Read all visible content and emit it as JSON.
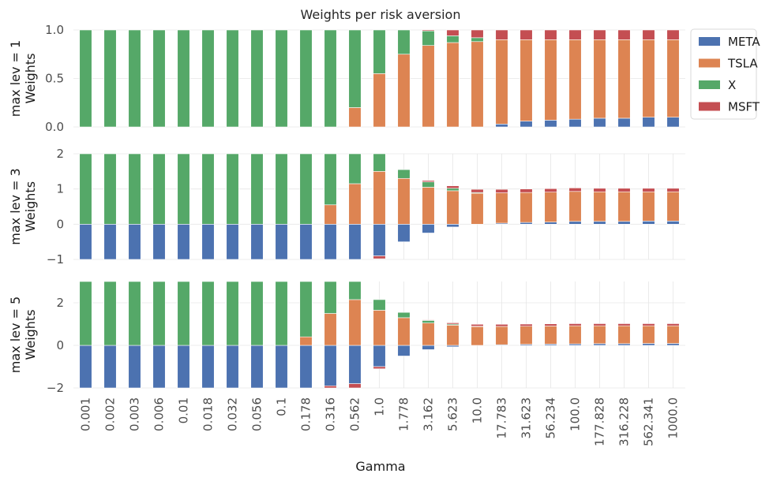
{
  "chart_data": {
    "type": "bar",
    "stacked": true,
    "title": "Weights per risk aversion",
    "xlabel": "Gamma",
    "categories": [
      "0.001",
      "0.002",
      "0.003",
      "0.006",
      "0.01",
      "0.018",
      "0.032",
      "0.056",
      "0.1",
      "0.178",
      "0.316",
      "0.562",
      "1.0",
      "1.778",
      "3.162",
      "5.623",
      "10.0",
      "17.783",
      "31.623",
      "56.234",
      "100.0",
      "177.828",
      "316.228",
      "562.341",
      "1000.0"
    ],
    "legend": {
      "position": "upper right outside",
      "entries": [
        {
          "name": "META",
          "color": "#4c72b0"
        },
        {
          "name": "TSLA",
          "color": "#dd8452"
        },
        {
          "name": "X",
          "color": "#55a868"
        },
        {
          "name": "MSFT",
          "color": "#c44e52"
        }
      ]
    },
    "grid": true,
    "panels": [
      {
        "ylabel": [
          "max lev = 1",
          "Weights"
        ],
        "ylim": [
          0,
          1.0
        ],
        "yticks": [
          "0.0",
          "0.5",
          "1.0"
        ],
        "ytick_values": [
          0,
          0.5,
          1.0
        ],
        "series": [
          {
            "name": "META",
            "values": [
              0,
              0,
              0,
              0,
              0,
              0,
              0,
              0,
              0,
              0,
              0,
              0,
              0,
              0,
              0,
              0,
              0,
              0.03,
              0.06,
              0.07,
              0.08,
              0.09,
              0.09,
              0.1,
              0.1
            ]
          },
          {
            "name": "TSLA",
            "values": [
              0,
              0,
              0,
              0,
              0,
              0,
              0,
              0,
              0,
              0,
              0,
              0.2,
              0.55,
              0.75,
              0.84,
              0.87,
              0.88,
              0.87,
              0.84,
              0.83,
              0.82,
              0.81,
              0.81,
              0.8,
              0.8
            ]
          },
          {
            "name": "X",
            "values": [
              1,
              1,
              1,
              1,
              1,
              1,
              1,
              1,
              1,
              1,
              1,
              0.8,
              0.45,
              0.25,
              0.15,
              0.07,
              0.04,
              0,
              0,
              0,
              0,
              0,
              0,
              0,
              0
            ]
          },
          {
            "name": "MSFT",
            "values": [
              0,
              0,
              0,
              0,
              0,
              0,
              0,
              0,
              0,
              0,
              0,
              0,
              0,
              0,
              0.01,
              0.06,
              0.08,
              0.1,
              0.1,
              0.1,
              0.1,
              0.1,
              0.1,
              0.1,
              0.1
            ]
          }
        ]
      },
      {
        "ylabel": [
          "max lev = 3",
          "Weights"
        ],
        "ylim": [
          -1,
          2
        ],
        "yticks": [
          "−1",
          "0",
          "1",
          "2"
        ],
        "ytick_values": [
          -1,
          0,
          1,
          2
        ],
        "series": [
          {
            "name": "META",
            "values": [
              -1,
              -1,
              -1,
              -1,
              -1,
              -1,
              -1,
              -1,
              -1,
              -1,
              -1,
              -1,
              -0.9,
              -0.5,
              -0.25,
              -0.08,
              0,
              0.03,
              0.05,
              0.06,
              0.08,
              0.08,
              0.08,
              0.09,
              0.09
            ]
          },
          {
            "name": "TSLA",
            "values": [
              0,
              0,
              0,
              0,
              0,
              0,
              0,
              0,
              0,
              0,
              0.55,
              1.15,
              1.5,
              1.3,
              1.05,
              0.95,
              0.88,
              0.86,
              0.85,
              0.85,
              0.85,
              0.84,
              0.84,
              0.83,
              0.83
            ]
          },
          {
            "name": "X",
            "values": [
              2,
              2,
              2,
              2,
              2,
              2,
              2,
              2,
              2,
              2,
              1.45,
              0.85,
              0.5,
              0.25,
              0.15,
              0.07,
              0.02,
              0,
              0,
              0,
              0,
              0,
              0,
              0,
              0
            ]
          },
          {
            "name": "MSFT",
            "values": [
              0,
              0,
              0,
              0,
              0,
              0,
              0,
              0,
              0,
              0,
              0,
              0,
              -0.08,
              0,
              0.04,
              0.07,
              0.09,
              0.1,
              0.1,
              0.1,
              0.1,
              0.1,
              0.1,
              0.1,
              0.1
            ]
          }
        ]
      },
      {
        "ylabel": [
          "max lev = 5",
          "Weights"
        ],
        "ylim": [
          -2,
          3
        ],
        "yticks": [
          "−2",
          "0",
          "2"
        ],
        "ytick_values": [
          -2,
          0,
          2
        ],
        "series": [
          {
            "name": "META",
            "values": [
              -2,
              -2,
              -2,
              -2,
              -2,
              -2,
              -2,
              -2,
              -2,
              -2,
              -1.9,
              -1.8,
              -1.0,
              -0.5,
              -0.2,
              -0.07,
              0,
              0.03,
              0.05,
              0.06,
              0.07,
              0.08,
              0.08,
              0.09,
              0.09
            ]
          },
          {
            "name": "TSLA",
            "values": [
              0,
              0,
              0,
              0,
              0,
              0,
              0,
              0,
              0,
              0.4,
              1.5,
              2.15,
              1.65,
              1.3,
              1.05,
              0.95,
              0.88,
              0.86,
              0.85,
              0.85,
              0.85,
              0.84,
              0.84,
              0.83,
              0.83
            ]
          },
          {
            "name": "X",
            "values": [
              3,
              3,
              3,
              3,
              3,
              3,
              3,
              3,
              3,
              2.6,
              1.5,
              0.85,
              0.5,
              0.25,
              0.12,
              0.05,
              0.02,
              0,
              0,
              0,
              0,
              0,
              0,
              0,
              0
            ]
          },
          {
            "name": "MSFT",
            "values": [
              0,
              0,
              0,
              0,
              0,
              0,
              0,
              0,
              0,
              0,
              -0.1,
              -0.2,
              -0.1,
              0,
              0.03,
              0.06,
              0.09,
              0.1,
              0.1,
              0.1,
              0.1,
              0.1,
              0.1,
              0.1,
              0.1
            ]
          }
        ]
      }
    ]
  }
}
